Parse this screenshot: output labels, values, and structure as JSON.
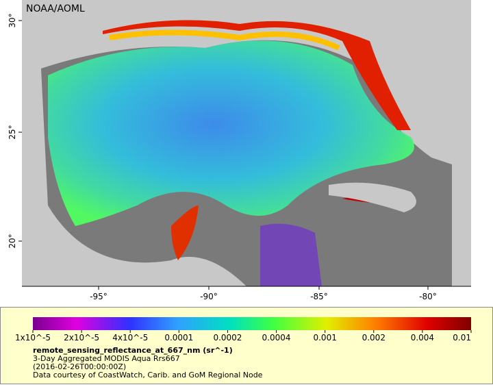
{
  "map": {
    "source": "NOAA/AOML",
    "lat_ticks": [
      "20°",
      "25°",
      "30°"
    ],
    "lon_ticks": [
      "-95°",
      "-90°",
      "-85°",
      "-80°"
    ]
  },
  "legend": {
    "colorbar_labels": [
      "1x10^-5",
      "2x10^-5",
      "4x10^-5",
      "0.0001",
      "0.0002",
      "0.0004",
      "0.001",
      "0.002",
      "0.004",
      "0.01"
    ],
    "variable": "remote_sensing_reflectance_at_667_nm (sr^-1)",
    "description": "3-Day Aggregated MODIS Aqua Rrs667",
    "time": "(2016-02-26T00:00:00Z)",
    "credit": "Data courtesy of CoastWatch, Carib. and GoM Regional Node"
  }
}
